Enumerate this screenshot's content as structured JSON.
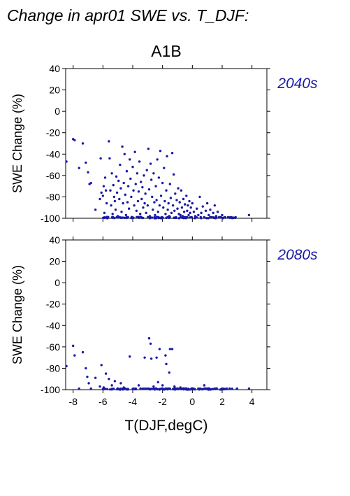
{
  "figure": {
    "title": "Change in apr01 SWE vs. T_DJF:",
    "scenario": "A1B",
    "xlabel": "T(DJF,degC)",
    "accent_color": "#1a1aa6"
  },
  "chart_data": [
    {
      "type": "scatter",
      "period_label": "2040s",
      "ylabel": "SWE Change (%)",
      "xlim": [
        -8.5,
        5.0
      ],
      "ylim": [
        -100,
        40
      ],
      "xticks": [
        -8,
        -6,
        -4,
        -2,
        0,
        2,
        4
      ],
      "yticks": [
        -100,
        -80,
        -60,
        -40,
        -20,
        0,
        20,
        40
      ],
      "x_tick_labels_shown": false,
      "grid": false,
      "points": [
        [
          -8.45,
          -47
        ],
        [
          -8.0,
          -26
        ],
        [
          -7.9,
          -27
        ],
        [
          -7.6,
          -53
        ],
        [
          -7.35,
          -30
        ],
        [
          -7.15,
          -48
        ],
        [
          -7.0,
          -57
        ],
        [
          -6.9,
          -68
        ],
        [
          -6.8,
          -67
        ],
        [
          -6.5,
          -92
        ],
        [
          -6.2,
          -82
        ],
        [
          -6.15,
          -44
        ],
        [
          -6.1,
          -76
        ],
        [
          -6.0,
          -79
        ],
        [
          -5.95,
          -70
        ],
        [
          -5.9,
          -95
        ],
        [
          -5.85,
          -62
        ],
        [
          -5.8,
          -74
        ],
        [
          -5.75,
          -86
        ],
        [
          -5.6,
          -28
        ],
        [
          -5.55,
          -44
        ],
        [
          -5.5,
          -74
        ],
        [
          -5.45,
          -88
        ],
        [
          -5.4,
          -58
        ],
        [
          -5.35,
          -96
        ],
        [
          -5.3,
          -69
        ],
        [
          -5.25,
          -80
        ],
        [
          -5.2,
          -84
        ],
        [
          -5.15,
          -92
        ],
        [
          -5.1,
          -61
        ],
        [
          -5.05,
          -76
        ],
        [
          -5.0,
          -98
        ],
        [
          -4.95,
          -65
        ],
        [
          -4.9,
          -82
        ],
        [
          -4.85,
          -50
        ],
        [
          -4.8,
          -72
        ],
        [
          -4.75,
          -94
        ],
        [
          -4.7,
          -33
        ],
        [
          -4.65,
          -86
        ],
        [
          -4.6,
          -67
        ],
        [
          -4.55,
          -40
        ],
        [
          -4.5,
          -78
        ],
        [
          -4.45,
          -97
        ],
        [
          -4.4,
          -56
        ],
        [
          -4.35,
          -85
        ],
        [
          -4.3,
          -70
        ],
        [
          -4.25,
          -91
        ],
        [
          -4.2,
          -45
        ],
        [
          -4.15,
          -63
        ],
        [
          -4.1,
          -80
        ],
        [
          -4.05,
          -99
        ],
        [
          -4.0,
          -52
        ],
        [
          -3.95,
          -74
        ],
        [
          -3.9,
          -88
        ],
        [
          -3.85,
          -38
        ],
        [
          -3.8,
          -68
        ],
        [
          -3.75,
          -93
        ],
        [
          -3.7,
          -58
        ],
        [
          -3.65,
          -84
        ],
        [
          -3.6,
          -75
        ],
        [
          -3.55,
          -47
        ],
        [
          -3.5,
          -96
        ],
        [
          -3.45,
          -66
        ],
        [
          -3.4,
          -82
        ],
        [
          -3.35,
          -71
        ],
        [
          -3.3,
          -90
        ],
        [
          -3.25,
          -60
        ],
        [
          -3.2,
          -86
        ],
        [
          -3.15,
          -77
        ],
        [
          -3.1,
          -95
        ],
        [
          -3.05,
          -55
        ],
        [
          -3.0,
          -88
        ],
        [
          -2.95,
          -35
        ],
        [
          -2.9,
          -73
        ],
        [
          -2.85,
          -98
        ],
        [
          -2.8,
          -49
        ],
        [
          -2.75,
          -64
        ],
        [
          -2.7,
          -80
        ],
        [
          -2.65,
          -92
        ],
        [
          -2.6,
          -58
        ],
        [
          -2.55,
          -85
        ],
        [
          -2.5,
          -97
        ],
        [
          -2.45,
          -70
        ],
        [
          -2.4,
          -83
        ],
        [
          -2.35,
          -45
        ],
        [
          -2.3,
          -94
        ],
        [
          -2.25,
          -62
        ],
        [
          -2.2,
          -88
        ],
        [
          -2.15,
          -37
        ],
        [
          -2.1,
          -79
        ],
        [
          -2.05,
          -99
        ],
        [
          -2.0,
          -67
        ],
        [
          -1.95,
          -90
        ],
        [
          -1.9,
          -53
        ],
        [
          -1.85,
          -84
        ],
        [
          -1.8,
          -96
        ],
        [
          -1.75,
          -74
        ],
        [
          -1.7,
          -42
        ],
        [
          -1.65,
          -92
        ],
        [
          -1.6,
          -86
        ],
        [
          -1.55,
          -98
        ],
        [
          -1.5,
          -68
        ],
        [
          -1.45,
          -81
        ],
        [
          -1.4,
          -95
        ],
        [
          -1.35,
          -39
        ],
        [
          -1.3,
          -88
        ],
        [
          -1.25,
          -59
        ],
        [
          -1.2,
          -93
        ],
        [
          -1.15,
          -77
        ],
        [
          -1.1,
          -99
        ],
        [
          -1.05,
          -83
        ],
        [
          -1.0,
          -91
        ],
        [
          -0.95,
          -72
        ],
        [
          -0.9,
          -96
        ],
        [
          -0.85,
          -85
        ],
        [
          -0.8,
          -97
        ],
        [
          -0.75,
          -74
        ],
        [
          -0.7,
          -90
        ],
        [
          -0.65,
          -98
        ],
        [
          -0.6,
          -82
        ],
        [
          -0.55,
          -94
        ],
        [
          -0.5,
          -87
        ],
        [
          -0.45,
          -99
        ],
        [
          -0.4,
          -79
        ],
        [
          -0.35,
          -93
        ],
        [
          -0.3,
          -88
        ],
        [
          -0.25,
          -97
        ],
        [
          -0.2,
          -84
        ],
        [
          -0.15,
          -95
        ],
        [
          -0.1,
          -90
        ],
        [
          -0.05,
          -99
        ],
        [
          0.0,
          -86
        ],
        [
          0.1,
          -94
        ],
        [
          0.2,
          -98
        ],
        [
          0.3,
          -91
        ],
        [
          0.4,
          -97
        ],
        [
          0.5,
          -80
        ],
        [
          0.6,
          -95
        ],
        [
          0.7,
          -89
        ],
        [
          0.8,
          -99
        ],
        [
          0.9,
          -93
        ],
        [
          1.0,
          -86
        ],
        [
          1.1,
          -97
        ],
        [
          1.2,
          -92
        ],
        [
          1.3,
          -99
        ],
        [
          1.4,
          -95
        ],
        [
          1.5,
          -88
        ],
        [
          1.6,
          -98
        ],
        [
          1.7,
          -94
        ],
        [
          1.8,
          -99
        ],
        [
          2.0,
          -97
        ],
        [
          2.2,
          -99
        ],
        [
          2.4,
          -99
        ],
        [
          2.6,
          -99
        ],
        [
          2.9,
          -99
        ],
        [
          3.8,
          -97
        ]
      ],
      "floor_points_count": 110,
      "floor_x_range": [
        -6.0,
        2.9
      ]
    },
    {
      "type": "scatter",
      "period_label": "2080s",
      "ylabel": "SWE Change (%)",
      "xlim": [
        -8.5,
        5.0
      ],
      "ylim": [
        -100,
        40
      ],
      "xticks": [
        -8,
        -6,
        -4,
        -2,
        0,
        2,
        4
      ],
      "x_tick_labels": [
        "-8",
        "-6",
        "-4",
        "-2",
        "0",
        "2",
        "4"
      ],
      "yticks": [
        -100,
        -80,
        -60,
        -40,
        -20,
        0,
        20,
        40
      ],
      "grid": false,
      "points": [
        [
          -8.45,
          -78
        ],
        [
          -8.0,
          -59
        ],
        [
          -7.9,
          -68
        ],
        [
          -7.6,
          -99
        ],
        [
          -7.35,
          -65
        ],
        [
          -7.15,
          -80
        ],
        [
          -7.05,
          -88
        ],
        [
          -6.95,
          -94
        ],
        [
          -6.8,
          -99
        ],
        [
          -6.5,
          -89
        ],
        [
          -6.2,
          -97
        ],
        [
          -6.1,
          -77
        ],
        [
          -5.95,
          -98
        ],
        [
          -5.8,
          -85
        ],
        [
          -5.6,
          -90
        ],
        [
          -5.4,
          -96
        ],
        [
          -5.2,
          -92
        ],
        [
          -5.0,
          -99
        ],
        [
          -4.8,
          -94
        ],
        [
          -4.6,
          -98
        ],
        [
          -4.2,
          -69
        ],
        [
          -3.8,
          -99
        ],
        [
          -3.6,
          -96
        ],
        [
          -3.2,
          -70
        ],
        [
          -3.0,
          -99
        ],
        [
          -2.9,
          -52
        ],
        [
          -2.8,
          -57
        ],
        [
          -2.75,
          -71
        ],
        [
          -2.6,
          -97
        ],
        [
          -2.4,
          -70
        ],
        [
          -2.3,
          -93
        ],
        [
          -2.2,
          -62
        ],
        [
          -2.05,
          -99
        ],
        [
          -2.0,
          -96
        ],
        [
          -1.8,
          -68
        ],
        [
          -1.75,
          -76
        ],
        [
          -1.65,
          -99
        ],
        [
          -1.55,
          -84
        ],
        [
          -1.5,
          -62
        ],
        [
          -1.35,
          -62
        ],
        [
          -1.2,
          -97
        ],
        [
          -1.0,
          -99
        ],
        [
          -0.8,
          -98
        ],
        [
          -0.5,
          -99
        ],
        [
          0.0,
          -99
        ],
        [
          0.4,
          -99
        ],
        [
          0.8,
          -96
        ],
        [
          1.0,
          -99
        ],
        [
          1.5,
          -99
        ],
        [
          2.0,
          -99
        ],
        [
          2.5,
          -99
        ],
        [
          3.0,
          -99
        ],
        [
          3.8,
          -99
        ]
      ],
      "floor_points_count": 150,
      "floor_x_range": [
        -6.0,
        3.0
      ]
    }
  ]
}
